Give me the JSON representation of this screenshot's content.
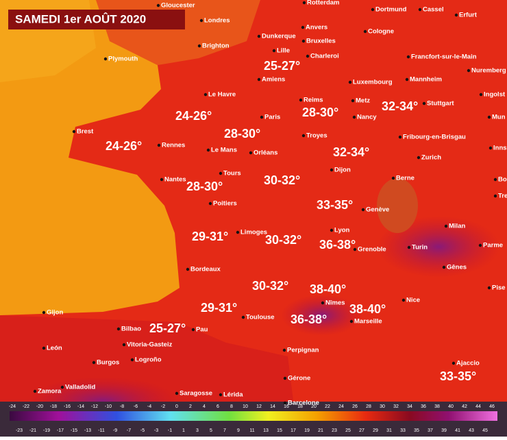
{
  "header": {
    "title": "SAMEDI 1er AOÛT 2020"
  },
  "cities": [
    "Gloucester",
    "Rotterdam",
    "Dortmund",
    "Cassel",
    "Erfurt",
    "Londres",
    "Anvers",
    "Dunkerque",
    "Bruxelles",
    "Cologne",
    "Brighton",
    "Lille",
    "Charleroi",
    "Plymouth",
    "Francfort-sur-le-Main",
    "Nuremberg",
    "Amiens",
    "Luxembourg",
    "Mannheim",
    "Ingolst",
    "Le Havre",
    "Reims",
    "Metz",
    "Stuttgart",
    "Paris",
    "Nancy",
    "Mun",
    "Brest",
    "Troyes",
    "Fribourg-en-Brisgau",
    "Rennes",
    "Le Mans",
    "Orléans",
    "Inns",
    "Zurich",
    "Dijon",
    "Tours",
    "Nantes",
    "Berne",
    "Bo",
    "Tre",
    "Poitiers",
    "Genève",
    "Milan",
    "Lyon",
    "Limoges",
    "Grenoble",
    "Turin",
    "Parme",
    "Bordeaux",
    "Gênes",
    "Pise",
    "Nice",
    "Nîmes",
    "Gijon",
    "Toulouse",
    "Marseille",
    "Bilbao",
    "Pau",
    "León",
    "Vitoria-Gasteiz",
    "Perpignan",
    "Burgos",
    "Logroño",
    "Ajaccio",
    "Valladolid",
    "Gérone",
    "Zamora",
    "Saragosse",
    "Lérida",
    "Barcelone"
  ],
  "temperatures": [
    "25-27°",
    "32-34°",
    "28-30°",
    "24-26°",
    "28-30°",
    "24-26°",
    "32-34°",
    "30-32°",
    "28-30°",
    "33-35°",
    "29-31°",
    "30-32°",
    "36-38°",
    "30-32°",
    "38-40°",
    "29-31°",
    "38-40°",
    "36-38°",
    "25-27°",
    "33-35°"
  ],
  "legend": {
    "top_ticks": [
      -24,
      -22,
      -20,
      -18,
      -16,
      -14,
      -12,
      -10,
      -8,
      -6,
      -4,
      -2,
      0,
      2,
      4,
      6,
      8,
      10,
      12,
      14,
      16,
      18,
      20,
      22,
      24,
      26,
      28,
      30,
      32,
      34,
      36,
      38,
      40,
      42,
      44,
      46
    ],
    "bottom_ticks": [
      -23,
      -21,
      -19,
      -17,
      -15,
      -13,
      -11,
      -9,
      -7,
      -5,
      -3,
      -1,
      1,
      3,
      5,
      7,
      9,
      11,
      13,
      15,
      17,
      19,
      21,
      23,
      25,
      27,
      29,
      31,
      33,
      35,
      37,
      39,
      41,
      43,
      45
    ]
  }
}
